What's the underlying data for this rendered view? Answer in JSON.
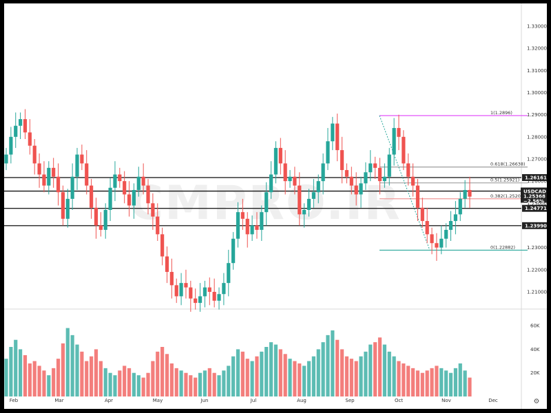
{
  "watermark": "CMPRO.IR",
  "symbol_label": "USDCAD",
  "change_label": "−2.56%",
  "last_price": "1.25368",
  "colors": {
    "up": "#26a69a",
    "down": "#ef5350",
    "fib_top": "#e040fb",
    "fib_bottom": "#26a69a",
    "level_line": "#222222"
  },
  "icons": [
    "gear-icon"
  ],
  "chart_data": {
    "type": "candlestick",
    "title": "",
    "x_labels": [
      "Feb",
      "Mar",
      "Apr",
      "May",
      "Jun",
      "Jul",
      "Aug",
      "Sep",
      "Oct",
      "Nov",
      "Dec"
    ],
    "y_ticks": [
      "1.21000",
      "1.22000",
      "1.23000",
      "1.24000",
      "1.25000",
      "1.26000",
      "1.27000",
      "1.28000",
      "1.29000",
      "1.30000",
      "1.31000",
      "1.32000",
      "1.33000"
    ],
    "ylim": [
      1.2,
      1.34
    ],
    "volume_ticks": [
      "20K",
      "40K",
      "60K"
    ],
    "volume_max": 70000,
    "price_levels": [
      {
        "label": "1.26161",
        "value": 1.26161
      },
      {
        "label": "1.25550",
        "value": 1.2555
      },
      {
        "label": "1.24771",
        "value": 1.24771
      },
      {
        "label": "1.23990",
        "value": 1.2399
      }
    ],
    "fib_levels": [
      {
        "label": "1(1.2896)",
        "value": 1.2896
      },
      {
        "label": "0.618(1.26638)",
        "value": 1.26638
      },
      {
        "label": "0.5(1.25921)",
        "value": 1.25921
      },
      {
        "label": "0.382(1.25204)",
        "value": 1.25204
      },
      {
        "label": "0(1.22882)",
        "value": 1.22882
      }
    ],
    "close_path": [
      1.272,
      1.28,
      1.285,
      1.288,
      1.282,
      1.276,
      1.268,
      1.263,
      1.258,
      1.266,
      1.262,
      1.255,
      1.243,
      1.252,
      1.262,
      1.272,
      1.268,
      1.258,
      1.248,
      1.24,
      1.238,
      1.247,
      1.257,
      1.263,
      1.26,
      1.254,
      1.249,
      1.256,
      1.262,
      1.258,
      1.25,
      1.244,
      1.236,
      1.226,
      1.219,
      1.213,
      1.208,
      1.214,
      1.212,
      1.207,
      1.205,
      1.208,
      1.212,
      1.21,
      1.206,
      1.209,
      1.214,
      1.223,
      1.234,
      1.246,
      1.243,
      1.236,
      1.24,
      1.238,
      1.246,
      1.255,
      1.263,
      1.275,
      1.268,
      1.26,
      1.262,
      1.258,
      1.245,
      1.247,
      1.252,
      1.255,
      1.26,
      1.268,
      1.278,
      1.286,
      1.274,
      1.265,
      1.262,
      1.258,
      1.254,
      1.259,
      1.264,
      1.268,
      1.266,
      1.26,
      1.262,
      1.272,
      1.284,
      1.28,
      1.268,
      1.262,
      1.258,
      1.248,
      1.242,
      1.236,
      1.232,
      1.23,
      1.234,
      1.238,
      1.242,
      1.245,
      1.252,
      1.256,
      1.253
    ],
    "volume_path": [
      32000,
      42000,
      48000,
      40000,
      35000,
      28000,
      30000,
      26000,
      22000,
      18000,
      24000,
      32000,
      45000,
      58000,
      52000,
      44000,
      38000,
      30000,
      34000,
      40000,
      30000,
      24000,
      20000,
      18000,
      22000,
      26000,
      24000,
      20000,
      18000,
      16000,
      20000,
      30000,
      38000,
      42000,
      36000,
      28000,
      24000,
      22000,
      20000,
      18000,
      16000,
      20000,
      22000,
      24000,
      20000,
      18000,
      22000,
      26000,
      34000,
      40000,
      38000,
      32000,
      30000,
      34000,
      38000,
      42000,
      46000,
      44000,
      40000,
      36000,
      32000,
      30000,
      28000,
      26000,
      30000,
      34000,
      40000,
      46000,
      52000,
      56000,
      48000,
      40000,
      34000,
      32000,
      30000,
      34000,
      38000,
      44000,
      46000,
      50000,
      44000,
      38000,
      34000,
      30000,
      28000,
      26000,
      24000,
      22000,
      20000,
      22000,
      24000,
      26000,
      24000,
      22000,
      20000,
      24000,
      28000,
      22000,
      16000
    ]
  }
}
